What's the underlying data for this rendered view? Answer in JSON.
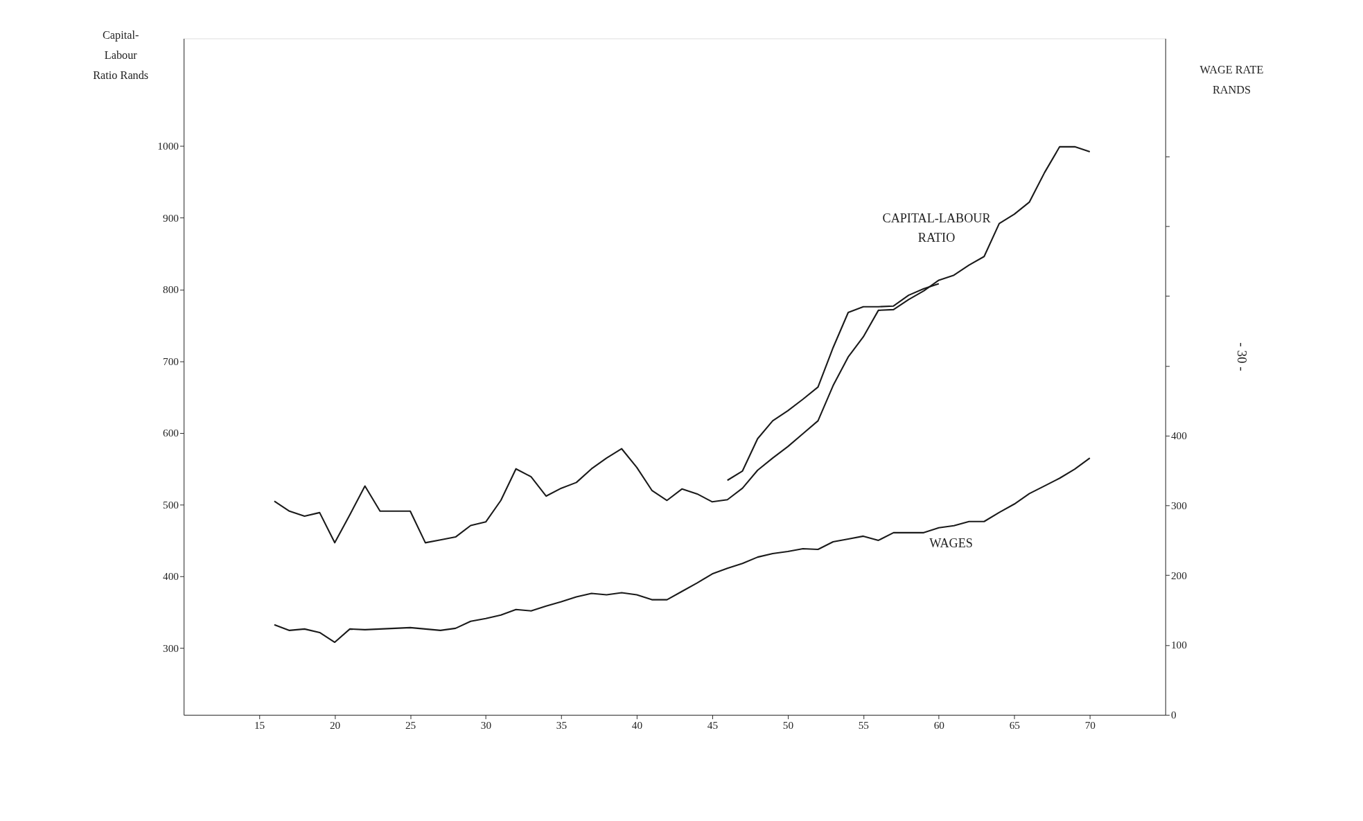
{
  "chart_data": {
    "type": "line",
    "ylabel": "Capital-\nLabour\nRatio Rands",
    "y2label": "WAGE RATE\nRANDS",
    "xlim": [
      10,
      75
    ],
    "xticks": [
      15,
      20,
      25,
      30,
      35,
      40,
      45,
      50,
      55,
      60,
      65,
      70
    ],
    "ylim": [
      207,
      1150
    ],
    "yticks": [
      300,
      400,
      500,
      600,
      700,
      800,
      900,
      1000
    ],
    "y2lim": [
      0,
      969
    ],
    "y2ticks": [
      0,
      100,
      200,
      300,
      400,
      {
        "value": 500,
        "label": null
      },
      {
        "value": 600,
        "label": null
      },
      {
        "value": 700,
        "label": null
      },
      {
        "value": 800,
        "label": null
      }
    ],
    "grid": false,
    "legend": false,
    "series": [
      {
        "name": "CAPITAL-LABOUR RATIO",
        "color": "#1a1a1a",
        "x": [
          16,
          17,
          18,
          19,
          20,
          21,
          22,
          23,
          24,
          25,
          26,
          27,
          28,
          29,
          30,
          31,
          32,
          33,
          34,
          35,
          36,
          37,
          38,
          39,
          40,
          41,
          42,
          43,
          44,
          45,
          46,
          47,
          48,
          49,
          50,
          51,
          52,
          53,
          54,
          55,
          56,
          57,
          58,
          59,
          60,
          61,
          62,
          63,
          64,
          65,
          66,
          67,
          68,
          69,
          70
        ],
        "values": [
          505,
          491,
          484,
          489,
          447,
          486,
          526,
          491,
          491,
          491,
          447,
          451,
          455,
          471,
          476,
          506,
          550,
          539,
          512,
          523,
          531,
          550,
          565,
          578,
          552,
          520,
          506,
          522,
          515,
          504,
          507,
          523,
          548,
          565,
          581,
          599,
          617,
          666,
          706,
          734,
          771,
          772,
          786,
          798,
          813,
          820,
          834,
          846,
          892,
          905,
          922,
          963,
          999,
          999,
          992
        ]
      },
      {
        "color": "#1a1a1a",
        "x": [
          46,
          47,
          48,
          49,
          50,
          51,
          52,
          53,
          54,
          55,
          56,
          57,
          58,
          59,
          60
        ],
        "values": [
          534,
          547,
          592,
          617,
          631,
          647,
          664,
          719,
          768,
          776,
          776,
          777,
          792,
          801,
          808
        ]
      },
      {
        "name": "WAGES",
        "color": "#1a1a1a",
        "axis": "y2",
        "x": [
          16,
          17,
          18,
          19,
          20,
          21,
          22,
          23,
          24,
          25,
          26,
          27,
          28,
          29,
          30,
          31,
          32,
          33,
          34,
          35,
          36,
          37,
          38,
          39,
          40,
          41,
          42,
          43,
          44,
          45,
          46,
          47,
          48,
          49,
          50,
          51,
          52,
          53,
          54,
          55,
          56,
          57,
          58,
          59,
          60,
          61,
          62,
          63,
          64,
          65,
          66,
          67,
          68,
          69,
          70
        ],
        "values": [
          129,
          121,
          123,
          118,
          104,
          123,
          122,
          123,
          124,
          125,
          123,
          121,
          124,
          134,
          138,
          143,
          151,
          149,
          156,
          162,
          169,
          174,
          172,
          175,
          172,
          165,
          165,
          177,
          189,
          202,
          210,
          217,
          226,
          231,
          234,
          238,
          237,
          248,
          252,
          256,
          250,
          261,
          261,
          261,
          268,
          271,
          277,
          277,
          290,
          302,
          317,
          328,
          339,
          352,
          368
        ]
      }
    ],
    "annotations": [
      "- 30 -"
    ]
  }
}
